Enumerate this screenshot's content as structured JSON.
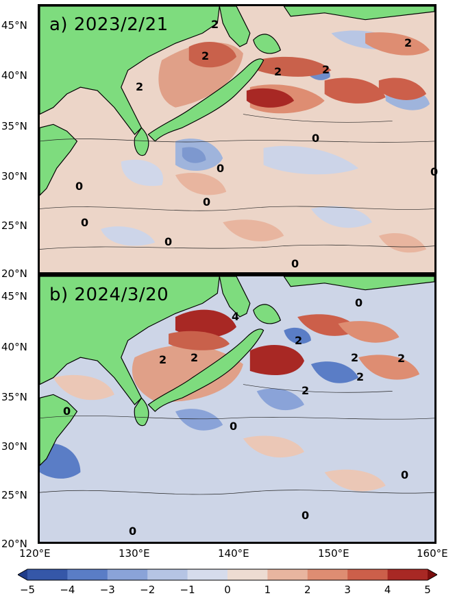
{
  "panels": [
    {
      "label": "a) 2023/2/21"
    },
    {
      "label": "b) 2024/3/20"
    }
  ],
  "lat_ticks": [
    "45°N",
    "40°N",
    "35°N",
    "30°N",
    "25°N",
    "20°N"
  ],
  "lon_ticks": [
    "120°E",
    "130°E",
    "140°E",
    "150°E",
    "160°E"
  ],
  "contour_labels": {
    "a": [
      "2",
      "2",
      "2",
      "2",
      "2",
      "2",
      "0",
      "0",
      "0",
      "0",
      "0",
      "0",
      "0",
      "0"
    ],
    "b": [
      "4",
      "2",
      "2",
      "2",
      "2",
      "2",
      "2",
      "2",
      "0",
      "0",
      "0",
      "0",
      "0",
      "0"
    ]
  },
  "colorbar": {
    "ticks": [
      "−5",
      "−4",
      "−3",
      "−2",
      "−1",
      "0",
      "1",
      "2",
      "3",
      "4",
      "5"
    ],
    "colors": [
      "#3557a8",
      "#5a7dc6",
      "#8aa3d8",
      "#b5c4e4",
      "#d6dcec",
      "#eddcd2",
      "#e8b59f",
      "#de8d72",
      "#cc5f4a",
      "#a82824"
    ]
  },
  "colors": {
    "land": "#7edc7e",
    "ocean_base": "#c9d2e6"
  }
}
